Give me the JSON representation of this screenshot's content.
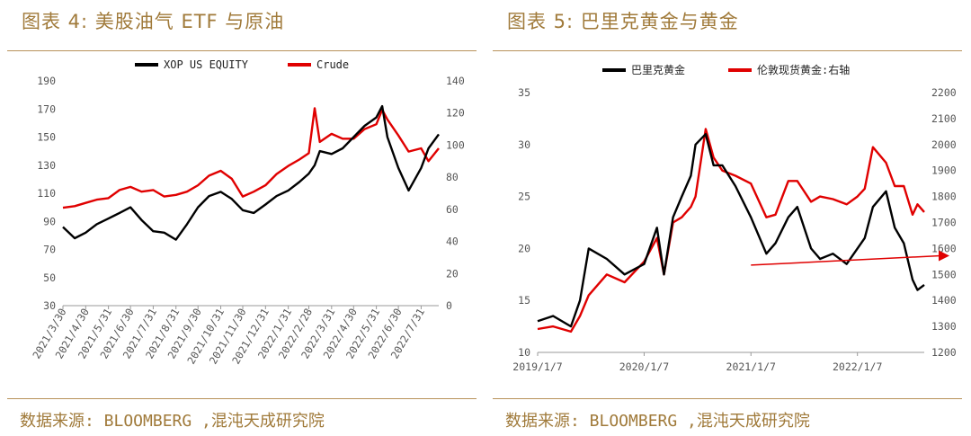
{
  "left": {
    "title": "图表 4: 美股油气 ETF 与原油",
    "source": "数据来源: BLOOMBERG ,混沌天成研究院"
  },
  "right": {
    "title": "图表 5: 巴里克黄金与黄金",
    "source": "数据来源: BLOOMBERG ,混沌天成研究院"
  },
  "chart_data": [
    {
      "type": "line",
      "title": "",
      "grid": false,
      "legend_position": "top",
      "x_tick_labels": [
        "2021/3/30",
        "2021/4/30",
        "2021/5/31",
        "2021/6/30",
        "2021/7/31",
        "2021/8/31",
        "2021/9/30",
        "2021/10/31",
        "2021/11/30",
        "2021/12/31",
        "2022/1/31",
        "2022/2/28",
        "2022/3/31",
        "2022/4/30",
        "2022/5/31",
        "2022/6/30",
        "2022/7/31"
      ],
      "y_left_ticks": [
        30,
        50,
        70,
        90,
        110,
        130,
        150,
        170,
        190
      ],
      "y_right_ticks": [
        0,
        20,
        40,
        60,
        80,
        100,
        120,
        140
      ],
      "ylim_left": [
        30,
        190
      ],
      "ylim_right": [
        0,
        140
      ],
      "series": [
        {
          "name": "XOP US EQUITY",
          "axis": "left",
          "color": "#000000",
          "x": [
            "2021/3/30",
            "2021/4/15",
            "2021/4/30",
            "2021/5/15",
            "2021/5/31",
            "2021/6/15",
            "2021/6/30",
            "2021/7/15",
            "2021/7/31",
            "2021/8/15",
            "2021/8/31",
            "2021/9/15",
            "2021/9/30",
            "2021/10/15",
            "2021/10/31",
            "2021/11/15",
            "2021/11/30",
            "2021/12/15",
            "2021/12/31",
            "2022/1/15",
            "2022/1/31",
            "2022/2/15",
            "2022/2/28",
            "2022/3/8",
            "2022/3/15",
            "2022/3/31",
            "2022/4/15",
            "2022/4/30",
            "2022/5/15",
            "2022/5/31",
            "2022/6/8",
            "2022/6/15",
            "2022/6/30",
            "2022/7/14",
            "2022/7/31",
            "2022/8/10",
            "2022/8/24"
          ],
          "values": [
            86,
            78,
            82,
            88,
            92,
            96,
            100,
            91,
            83,
            82,
            77,
            88,
            100,
            108,
            111,
            106,
            98,
            96,
            102,
            108,
            112,
            118,
            124,
            130,
            140,
            138,
            142,
            150,
            158,
            164,
            172,
            150,
            128,
            112,
            128,
            142,
            152
          ]
        },
        {
          "name": "Crude",
          "axis": "right",
          "color": "#e00000",
          "x": [
            "2021/3/30",
            "2021/4/15",
            "2021/4/30",
            "2021/5/15",
            "2021/5/31",
            "2021/6/15",
            "2021/6/30",
            "2021/7/15",
            "2021/7/31",
            "2021/8/15",
            "2021/8/31",
            "2021/9/15",
            "2021/9/30",
            "2021/10/15",
            "2021/10/31",
            "2021/11/15",
            "2021/11/30",
            "2021/12/15",
            "2021/12/31",
            "2022/1/15",
            "2022/1/31",
            "2022/2/15",
            "2022/2/28",
            "2022/3/8",
            "2022/3/15",
            "2022/3/31",
            "2022/4/15",
            "2022/4/30",
            "2022/5/15",
            "2022/5/31",
            "2022/6/8",
            "2022/6/15",
            "2022/6/30",
            "2022/7/14",
            "2022/7/31",
            "2022/8/10",
            "2022/8/24"
          ],
          "values": [
            61,
            62,
            64,
            66,
            67,
            72,
            74,
            71,
            72,
            68,
            69,
            71,
            75,
            81,
            84,
            79,
            68,
            71,
            75,
            82,
            87,
            91,
            95,
            123,
            102,
            107,
            104,
            104,
            110,
            113,
            122,
            116,
            106,
            96,
            98,
            90,
            98
          ]
        }
      ]
    },
    {
      "type": "line",
      "title": "",
      "grid": false,
      "legend_position": "top",
      "x_tick_labels": [
        "2019/1/7",
        "2020/1/7",
        "2021/1/7",
        "2022/1/7"
      ],
      "y_left_ticks": [
        10,
        15,
        20,
        25,
        30,
        35
      ],
      "y_right_ticks": [
        1200,
        1300,
        1400,
        1500,
        1600,
        1700,
        1800,
        1900,
        2000,
        2100,
        2200
      ],
      "ylim_left": [
        10,
        35
      ],
      "ylim_right": [
        1200,
        2200
      ],
      "annotation": "red arrow marking a horizontal level, pointing right",
      "series": [
        {
          "name": "巴里克黄金",
          "axis": "left",
          "color": "#000000",
          "x": [
            "2019/1/7",
            "2019/3/1",
            "2019/5/1",
            "2019/6/1",
            "2019/7/1",
            "2019/9/1",
            "2019/11/1",
            "2020/1/7",
            "2020/2/20",
            "2020/3/15",
            "2020/4/15",
            "2020/5/15",
            "2020/6/15",
            "2020/7/1",
            "2020/8/5",
            "2020/9/1",
            "2020/10/1",
            "2020/11/15",
            "2021/1/7",
            "2021/3/1",
            "2021/4/1",
            "2021/5/15",
            "2021/6/15",
            "2021/8/1",
            "2021/9/1",
            "2021/10/15",
            "2021/12/1",
            "2022/1/7",
            "2022/2/1",
            "2022/3/1",
            "2022/4/15",
            "2022/5/15",
            "2022/6/15",
            "2022/7/15",
            "2022/8/1",
            "2022/8/24"
          ],
          "values": [
            13,
            13.5,
            12.5,
            15,
            20,
            19,
            17.5,
            18.5,
            22,
            17.5,
            23,
            25,
            27,
            30,
            31,
            28,
            28,
            26,
            23,
            19.5,
            20.5,
            23,
            24,
            20,
            19,
            19.5,
            18.5,
            20,
            21,
            24,
            25.5,
            22,
            20.5,
            17,
            16,
            16.5
          ]
        },
        {
          "name": "伦敦现货黄金:右轴",
          "axis": "right",
          "color": "#e00000",
          "x": [
            "2019/1/7",
            "2019/3/1",
            "2019/5/1",
            "2019/6/1",
            "2019/7/1",
            "2019/9/1",
            "2019/11/1",
            "2020/1/7",
            "2020/2/20",
            "2020/3/15",
            "2020/4/15",
            "2020/5/15",
            "2020/6/15",
            "2020/7/1",
            "2020/8/5",
            "2020/9/1",
            "2020/10/1",
            "2020/11/15",
            "2021/1/7",
            "2021/3/1",
            "2021/4/1",
            "2021/5/15",
            "2021/6/15",
            "2021/8/1",
            "2021/9/1",
            "2021/10/15",
            "2021/12/1",
            "2022/1/7",
            "2022/2/1",
            "2022/3/1",
            "2022/4/15",
            "2022/5/15",
            "2022/6/15",
            "2022/7/15",
            "2022/8/1",
            "2022/8/24"
          ],
          "values": [
            1290,
            1300,
            1280,
            1340,
            1420,
            1500,
            1470,
            1550,
            1640,
            1500,
            1700,
            1720,
            1760,
            1800,
            2060,
            1950,
            1900,
            1880,
            1850,
            1720,
            1730,
            1860,
            1860,
            1780,
            1800,
            1790,
            1770,
            1800,
            1830,
            1990,
            1930,
            1840,
            1840,
            1730,
            1770,
            1740
          ]
        }
      ]
    }
  ]
}
